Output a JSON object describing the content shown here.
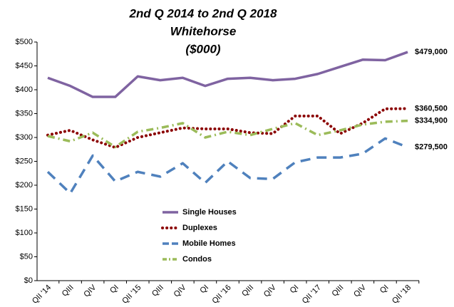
{
  "chart_data": {
    "type": "line",
    "title": [
      "2nd Q 2014 to 2nd Q 2018",
      "Whitehorse",
      "($000)"
    ],
    "categories": [
      "QII '14",
      "QIII",
      "QIV",
      "QI",
      "QII '15",
      "QIII",
      "QIV",
      "QI",
      "QII '16",
      "QIII",
      "QIV",
      "QI",
      "QII '17",
      "QIII",
      "QIV",
      "QI",
      "QII '18"
    ],
    "series": [
      {
        "name": "Single Houses",
        "color": "#7f63a1",
        "style": "solid",
        "values": [
          425,
          408,
          385,
          385,
          428,
          420,
          425,
          408,
          423,
          425,
          420,
          423,
          433,
          448,
          463,
          462,
          479
        ],
        "value_labels": [
          null,
          null,
          null,
          null,
          null,
          null,
          null,
          null,
          null,
          null,
          null,
          null,
          null,
          null,
          null,
          null,
          "$479,000"
        ]
      },
      {
        "name": "Duplexes",
        "color": "#8b0000",
        "style": "dotted",
        "values": [
          305,
          315,
          295,
          279,
          300,
          310,
          320,
          318,
          318,
          310,
          308,
          345,
          345,
          308,
          330,
          360,
          360.5
        ],
        "value_labels": [
          null,
          null,
          null,
          null,
          null,
          null,
          null,
          null,
          null,
          null,
          null,
          null,
          null,
          null,
          null,
          null,
          "$360,500"
        ]
      },
      {
        "name": "Mobile Homes",
        "color": "#4f81bd",
        "style": "dashed",
        "values": [
          228,
          183,
          262,
          208,
          228,
          218,
          246,
          205,
          250,
          215,
          213,
          248,
          258,
          258,
          266,
          298,
          279.5
        ],
        "value_labels": [
          null,
          null,
          null,
          null,
          null,
          null,
          null,
          null,
          null,
          null,
          null,
          null,
          null,
          null,
          null,
          null,
          "$279,500"
        ]
      },
      {
        "name": "Condos",
        "color": "#9bbb59",
        "style": "dashdot",
        "values": [
          303,
          292,
          310,
          280,
          312,
          320,
          330,
          300,
          312,
          305,
          318,
          330,
          305,
          315,
          327,
          333,
          334.9
        ],
        "value_labels": [
          null,
          null,
          null,
          null,
          null,
          null,
          null,
          null,
          null,
          null,
          null,
          null,
          null,
          null,
          null,
          null,
          "$334,900"
        ]
      }
    ],
    "ylim": [
      0,
      500
    ],
    "yticks": [
      {
        "value": 0,
        "label": "$0"
      },
      {
        "value": 50,
        "label": "$50"
      },
      {
        "value": 100,
        "label": "$100"
      },
      {
        "value": 150,
        "label": "$150"
      },
      {
        "value": 200,
        "label": "$200"
      },
      {
        "value": 250,
        "label": "$250"
      },
      {
        "value": 300,
        "label": "$300"
      },
      {
        "value": 350,
        "label": "$350"
      },
      {
        "value": 400,
        "label": "$400"
      },
      {
        "value": 450,
        "label": "$450"
      },
      {
        "value": 500,
        "label": "$500"
      }
    ],
    "grid": false,
    "legend": "center"
  }
}
